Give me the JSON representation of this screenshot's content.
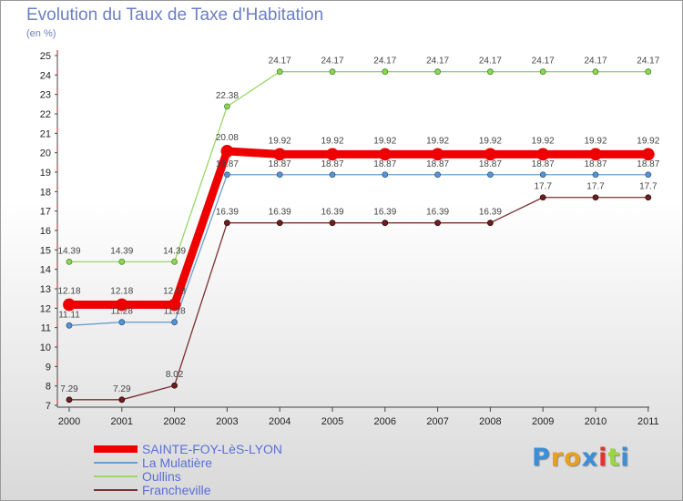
{
  "page": {
    "title": "Evolution du Taux de Taxe d'Habitation",
    "subtitle": "(en %)"
  },
  "chart_data": {
    "type": "line",
    "title": "Evolution du Taux de Taxe d'Habitation",
    "subtitle": "(en %)",
    "xlabel": "",
    "ylabel": "",
    "x": [
      "2000",
      "2001",
      "2002",
      "2003",
      "2004",
      "2005",
      "2006",
      "2007",
      "2008",
      "2009",
      "2010",
      "2011"
    ],
    "ylim": [
      7,
      25
    ],
    "yticks": [
      7,
      8,
      9,
      10,
      11,
      12,
      13,
      14,
      15,
      16,
      17,
      18,
      19,
      20,
      21,
      22,
      23,
      24,
      25
    ],
    "grid": false,
    "legend_position": "bottom-left",
    "series": [
      {
        "name": "SAINTE-FOY-LèS-LYON",
        "color": "#ee0000",
        "values": [
          12.18,
          12.18,
          12.18,
          20.08,
          19.92,
          19.92,
          19.92,
          19.92,
          19.92,
          19.92,
          19.92,
          19.92
        ],
        "labels": [
          "12.18",
          "12.18",
          "12.18",
          "20.08",
          "19.92",
          "19.92",
          "19.92",
          "19.92",
          "19.92",
          "19.92",
          "19.92",
          "19.92"
        ]
      },
      {
        "name": "La Mulatière",
        "color": "#6a9ed2",
        "values": [
          11.11,
          11.28,
          11.28,
          18.87,
          18.87,
          18.87,
          18.87,
          18.87,
          18.87,
          18.87,
          18.87,
          18.87
        ],
        "labels": [
          "11.11",
          "11.28",
          "11.28",
          "18.87",
          "18.87",
          "18.87",
          "18.87",
          "18.87",
          "18.87",
          "18.87",
          "18.87",
          "18.87"
        ]
      },
      {
        "name": "Oullins",
        "color": "#9ad667",
        "values": [
          14.39,
          14.39,
          14.39,
          22.38,
          24.17,
          24.17,
          24.17,
          24.17,
          24.17,
          24.17,
          24.17,
          24.17
        ],
        "labels": [
          "14.39",
          "14.39",
          "14.39",
          "22.38",
          "24.17",
          "24.17",
          "24.17",
          "24.17",
          "24.17",
          "24.17",
          "24.17",
          "24.17"
        ]
      },
      {
        "name": "Francheville",
        "color": "#7a3030",
        "values": [
          7.29,
          7.29,
          8.02,
          16.39,
          16.39,
          16.39,
          16.39,
          16.39,
          16.39,
          17.7,
          17.7,
          17.7
        ],
        "labels": [
          "7.29",
          "7.29",
          "8.02",
          "16.39",
          "16.39",
          "16.39",
          "16.39",
          "16.39",
          "16.39",
          "17.7",
          "17.7",
          "17.7"
        ]
      }
    ]
  },
  "legend": [
    {
      "label": "SAINTE-FOY-LèS-LYON",
      "color": "#ee0000"
    },
    {
      "label": "La Mulatière",
      "color": "#6a9ed2"
    },
    {
      "label": "Oullins",
      "color": "#9ad667"
    },
    {
      "label": "Francheville",
      "color": "#7a3030"
    }
  ],
  "logo": {
    "text": "Proxiti",
    "letters": [
      "P",
      "r",
      "o",
      "x",
      "i",
      "t",
      "i"
    ],
    "colors": [
      "#3a8fd8",
      "#e8a020",
      "#e8a020",
      "#3a8fd8",
      "#e83030",
      "#9ad640",
      "#3a8fd8"
    ]
  }
}
